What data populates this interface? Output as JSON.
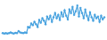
{
  "chart_data": {
    "type": "line",
    "categories": [
      null,
      null,
      null,
      null,
      null,
      null,
      null,
      null,
      null,
      null,
      null,
      null,
      null,
      null,
      null,
      null,
      null,
      null,
      null,
      null,
      null,
      null,
      null,
      null,
      null,
      null,
      null,
      null,
      null,
      null,
      null,
      null,
      null,
      null,
      null,
      null,
      null,
      null,
      null,
      null,
      null,
      null,
      null,
      null,
      null,
      null,
      null,
      null,
      null,
      null,
      null,
      null,
      null,
      null,
      null,
      null,
      null,
      null,
      null,
      null,
      null,
      null,
      null,
      null,
      null
    ],
    "values": [
      12,
      11,
      12,
      11,
      12,
      14,
      12,
      11,
      13,
      12,
      18,
      14,
      13,
      12,
      14,
      13,
      30,
      28,
      40,
      35,
      45,
      38,
      30,
      50,
      42,
      55,
      48,
      38,
      60,
      52,
      62,
      45,
      58,
      70,
      55,
      65,
      50,
      72,
      60,
      78,
      62,
      52,
      80,
      70,
      88,
      65,
      75,
      92,
      60,
      85,
      70,
      55,
      80,
      62,
      50,
      72,
      58,
      48,
      65,
      55,
      60,
      45,
      62,
      52,
      58
    ],
    "color": "#4aa3df",
    "marker": "circle",
    "ylim": [
      0,
      100
    ],
    "tick_labels": false,
    "grid": false
  }
}
